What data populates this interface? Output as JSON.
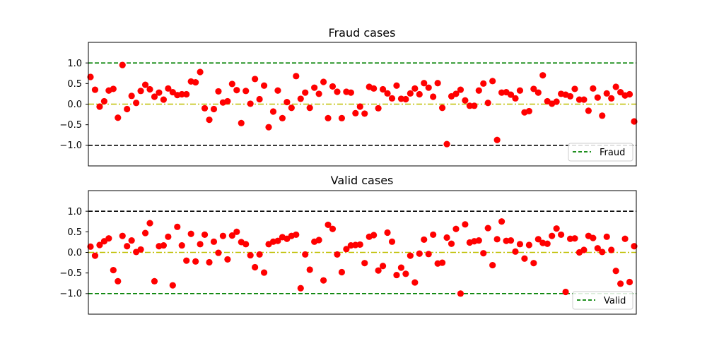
{
  "chart_data": [
    {
      "type": "scatter",
      "title": "Fraud cases",
      "xlabel": "",
      "ylabel": "",
      "ylim": [
        -1.5,
        1.5
      ],
      "yticks": [
        "1.0",
        "0.5",
        "0.0",
        "−0.5",
        "−1.0"
      ],
      "ytick_values": [
        1.0,
        0.5,
        0.0,
        -0.5,
        -1.0
      ],
      "xticks_visible": false,
      "grid": false,
      "point_color": "#ff0000",
      "upper_line": {
        "y": 1.0,
        "color": "#008000",
        "style": "dashed"
      },
      "lower_line": {
        "y": -1.0,
        "color": "#000000",
        "style": "dashed"
      },
      "zero_line": {
        "y": 0.0,
        "color": "#bfbf00",
        "style": "dashdot"
      },
      "legend": {
        "placement": "lower right",
        "label": "Fraud",
        "color": "#008000"
      },
      "x_range": [
        0,
        119
      ],
      "values": [
        0.66,
        0.35,
        -0.06,
        0.07,
        0.33,
        0.37,
        -0.33,
        0.95,
        -0.12,
        0.2,
        0.03,
        0.32,
        0.47,
        0.36,
        0.18,
        0.28,
        0.11,
        0.38,
        0.29,
        0.22,
        0.24,
        0.24,
        0.55,
        0.53,
        0.78,
        -0.1,
        -0.38,
        -0.12,
        0.31,
        0.04,
        0.07,
        0.49,
        0.34,
        -0.46,
        0.32,
        0.01,
        0.61,
        0.12,
        0.45,
        -0.56,
        -0.18,
        0.33,
        -0.34,
        0.05,
        -0.09,
        0.68,
        0.13,
        0.28,
        -0.09,
        0.4,
        0.25,
        0.54,
        -0.34,
        0.43,
        0.3,
        -0.34,
        0.3,
        0.28,
        -0.22,
        -0.06,
        -0.23,
        0.42,
        0.38,
        -0.1,
        0.36,
        0.26,
        0.14,
        0.45,
        0.13,
        0.12,
        0.26,
        0.38,
        0.24,
        0.51,
        0.4,
        0.18,
        0.51,
        -0.09,
        -0.97,
        0.19,
        0.25,
        0.35,
        0.09,
        -0.04,
        -0.04,
        0.33,
        0.5,
        0.03,
        0.56,
        -0.87,
        0.28,
        0.29,
        0.23,
        0.14,
        0.33,
        -0.2,
        -0.17,
        0.37,
        0.28,
        0.7,
        0.07,
        0.01,
        0.06,
        0.25,
        0.23,
        0.19,
        0.37,
        0.11,
        0.11,
        -0.16,
        0.38,
        0.16,
        -0.28,
        0.26,
        0.14,
        0.42,
        0.29,
        0.21,
        0.24,
        -0.42
      ]
    },
    {
      "type": "scatter",
      "title": "Valid cases",
      "xlabel": "",
      "ylabel": "",
      "ylim": [
        -1.5,
        1.5
      ],
      "yticks": [
        "1.0",
        "0.5",
        "0.0",
        "−0.5",
        "−1.0"
      ],
      "ytick_values": [
        1.0,
        0.5,
        0.0,
        -0.5,
        -1.0
      ],
      "xticks_visible": false,
      "grid": false,
      "point_color": "#ff0000",
      "upper_line": {
        "y": 1.0,
        "color": "#000000",
        "style": "dashed"
      },
      "lower_line": {
        "y": -1.0,
        "color": "#008000",
        "style": "dashed"
      },
      "zero_line": {
        "y": 0.0,
        "color": "#bfbf00",
        "style": "dashdot"
      },
      "legend": {
        "placement": "lower right",
        "label": "Valid",
        "color": "#008000"
      },
      "x_range": [
        0,
        119
      ],
      "values": [
        0.14,
        -0.08,
        0.18,
        0.27,
        0.34,
        -0.43,
        -0.7,
        0.4,
        0.15,
        0.29,
        0.01,
        0.07,
        0.47,
        0.71,
        -0.7,
        0.15,
        0.17,
        0.38,
        -0.8,
        0.62,
        0.17,
        -0.2,
        0.45,
        -0.22,
        0.2,
        0.43,
        -0.24,
        0.26,
        -0.01,
        0.4,
        -0.17,
        0.41,
        0.5,
        0.25,
        0.2,
        -0.07,
        -0.36,
        -0.05,
        -0.49,
        0.2,
        0.26,
        0.28,
        0.37,
        0.33,
        0.4,
        0.43,
        -0.87,
        -0.05,
        -0.42,
        0.26,
        0.3,
        -0.68,
        0.67,
        0.57,
        -0.05,
        -0.48,
        0.08,
        0.17,
        0.18,
        0.19,
        -0.26,
        0.38,
        0.42,
        -0.44,
        -0.33,
        0.48,
        0.26,
        -0.55,
        -0.37,
        -0.52,
        -0.08,
        -0.73,
        -0.03,
        0.31,
        -0.04,
        0.43,
        -0.27,
        -0.25,
        0.36,
        0.21,
        0.57,
        -1.0,
        0.68,
        0.24,
        0.27,
        0.29,
        -0.02,
        0.59,
        -0.31,
        0.32,
        0.75,
        0.28,
        0.29,
        0.02,
        0.2,
        -0.15,
        0.18,
        -0.26,
        0.32,
        0.23,
        0.21,
        0.4,
        0.58,
        0.43,
        -0.96,
        0.33,
        0.34,
        0.0,
        0.06,
        0.4,
        0.35,
        0.1,
        0.01,
        0.38,
        0.06,
        -0.45,
        -0.76,
        0.33,
        -0.72,
        0.15
      ]
    }
  ]
}
